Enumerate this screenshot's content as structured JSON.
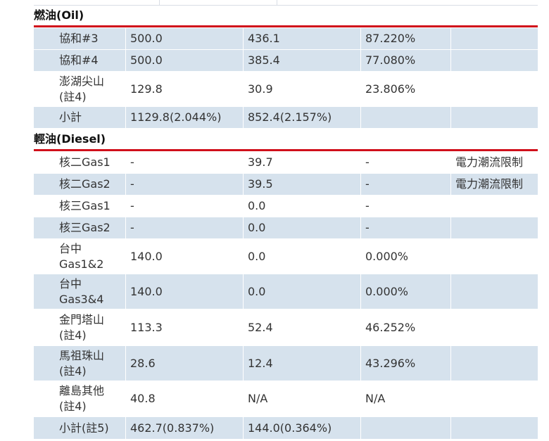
{
  "oil": {
    "title": "燃油(Oil)",
    "rows": [
      {
        "name": "協和#3",
        "capacity": "500.0",
        "output": "436.1",
        "ratio": "87.220%",
        "note": ""
      },
      {
        "name": "協和#4",
        "capacity": "500.0",
        "output": "385.4",
        "ratio": "77.080%",
        "note": ""
      },
      {
        "name": "澎湖尖山\n(註4)",
        "capacity": "129.8",
        "output": "30.9",
        "ratio": "23.806%",
        "note": ""
      },
      {
        "name": "小計",
        "capacity": "1129.8(2.044%)",
        "output": "852.4(2.157%)",
        "ratio": "",
        "note": ""
      }
    ]
  },
  "diesel": {
    "title": "輕油(Diesel)",
    "rows": [
      {
        "name": "核二Gas1",
        "capacity": "-",
        "output": "39.7",
        "ratio": "-",
        "note": "電力潮流限制"
      },
      {
        "name": "核二Gas2",
        "capacity": "-",
        "output": "39.5",
        "ratio": "-",
        "note": "電力潮流限制"
      },
      {
        "name": "核三Gas1",
        "capacity": "-",
        "output": "0.0",
        "ratio": "-",
        "note": ""
      },
      {
        "name": "核三Gas2",
        "capacity": "-",
        "output": "0.0",
        "ratio": "-",
        "note": ""
      },
      {
        "name": "台中\nGas1&2",
        "capacity": "140.0",
        "output": "0.0",
        "ratio": "0.000%",
        "note": ""
      },
      {
        "name": "台中\nGas3&4",
        "capacity": "140.0",
        "output": "0.0",
        "ratio": "0.000%",
        "note": ""
      },
      {
        "name": "金門塔山\n(註4)",
        "capacity": "113.3",
        "output": "52.4",
        "ratio": "46.252%",
        "note": ""
      },
      {
        "name": "馬祖珠山\n(註4)",
        "capacity": "28.6",
        "output": "12.4",
        "ratio": "43.296%",
        "note": ""
      },
      {
        "name": "離島其他\n(註4)",
        "capacity": "40.8",
        "output": "N/A",
        "ratio": "N/A",
        "note": ""
      },
      {
        "name": "小計(註5)",
        "capacity": "462.7(0.837%)",
        "output": "144.0(0.364%)",
        "ratio": "",
        "note": ""
      }
    ]
  }
}
